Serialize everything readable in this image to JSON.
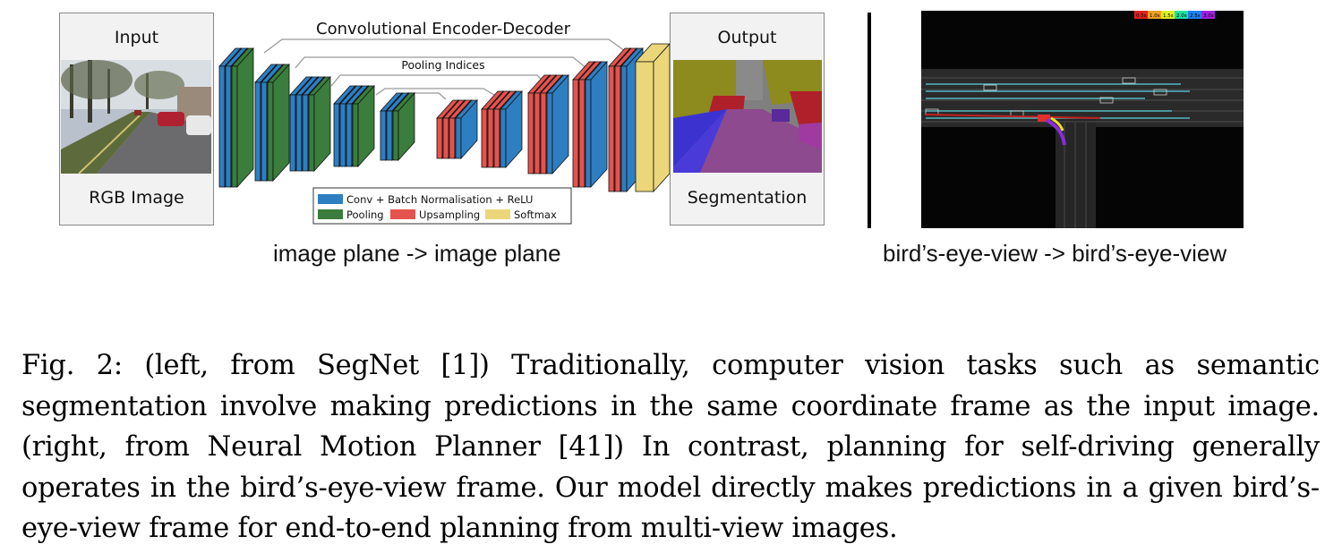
{
  "figure": {
    "left_panel": {
      "input_box": {
        "title": "Input",
        "subtitle": "RGB Image"
      },
      "output_box": {
        "title": "Output",
        "subtitle": "Segmentation"
      },
      "network": {
        "top_label": "Convolutional Encoder-Decoder",
        "indices_label": "Pooling Indices",
        "legend": [
          {
            "label": "Conv + Batch Normalisation + ReLU",
            "color": "#2e7ec2"
          },
          {
            "label": "Pooling",
            "color": "#3a7d3c"
          },
          {
            "label": "Upsampling",
            "color": "#e5534e"
          },
          {
            "label": "Softmax",
            "color": "#ecd67a"
          }
        ]
      },
      "caption": "image plane -> image plane"
    },
    "right_panel": {
      "colorbar": [
        "0.5s",
        "1.0s",
        "1.5s",
        "2.0s",
        "2.5s",
        "3.0s"
      ],
      "caption": "bird’s-eye-view -> bird’s-eye-view"
    }
  },
  "caption": {
    "text": "Fig. 2: (left, from SegNet [1]) Traditionally, computer vision tasks such as semantic segmentation involve making predictions in the same coordinate frame as the input image. (right, from Neural Motion Planner [41]) In contrast, planning for self-driving generally operates in the bird’s-eye-view frame. Our model directly makes predictions in a given bird’s-eye-view frame for end-to-end planning from multi-view images."
  }
}
